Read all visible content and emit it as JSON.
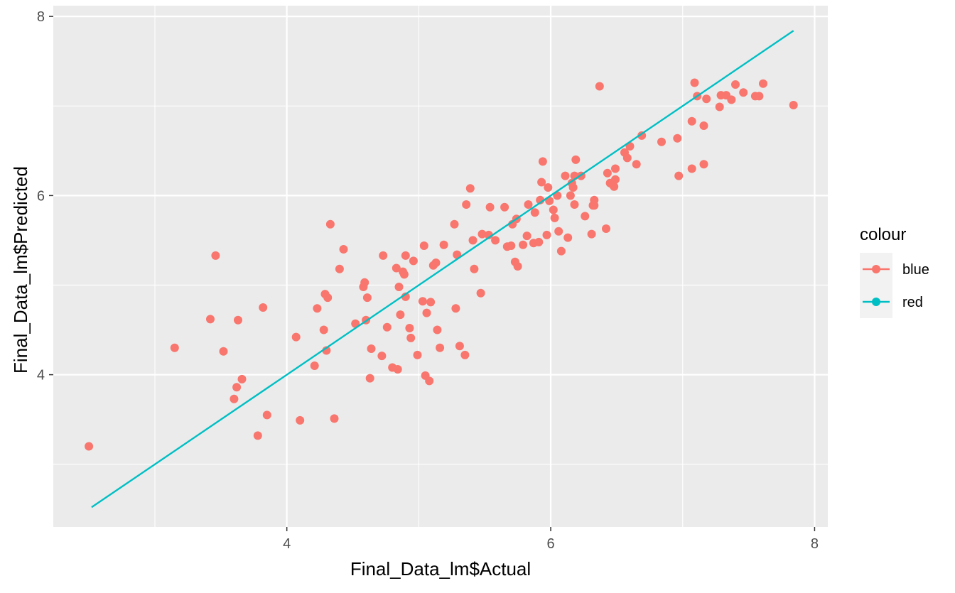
{
  "chart_data": {
    "type": "scatter",
    "xlabel": "Final_Data_lm$Actual",
    "ylabel": "Final_Data_lm$Predicted",
    "xlim": [
      2.23,
      8.1
    ],
    "ylim": [
      2.3,
      8.12
    ],
    "x_ticks": [
      4,
      6,
      8
    ],
    "x_tick_labels": [
      "4",
      "6",
      "8"
    ],
    "y_ticks": [
      4,
      6,
      8
    ],
    "y_tick_labels": [
      "4",
      "6",
      "8"
    ],
    "grid": true,
    "legend": {
      "title": "colour",
      "position": "right",
      "entries": [
        {
          "label": "blue",
          "color": "#F8766D"
        },
        {
          "label": "red",
          "color": "#00BFC4"
        }
      ]
    },
    "series": [
      {
        "name": "blue",
        "color": "#F8766D",
        "kind": "points",
        "points": [
          [
            2.5,
            3.2
          ],
          [
            3.15,
            4.3
          ],
          [
            3.42,
            4.62
          ],
          [
            3.46,
            5.33
          ],
          [
            3.52,
            4.26
          ],
          [
            3.6,
            3.73
          ],
          [
            3.62,
            3.86
          ],
          [
            3.63,
            4.61
          ],
          [
            3.66,
            3.95
          ],
          [
            3.78,
            3.32
          ],
          [
            3.82,
            4.75
          ],
          [
            3.85,
            3.55
          ],
          [
            4.07,
            4.42
          ],
          [
            4.1,
            3.49
          ],
          [
            4.21,
            4.1
          ],
          [
            4.23,
            4.74
          ],
          [
            4.28,
            4.5
          ],
          [
            4.29,
            4.9
          ],
          [
            4.3,
            4.27
          ],
          [
            4.31,
            4.86
          ],
          [
            4.33,
            5.68
          ],
          [
            4.36,
            3.51
          ],
          [
            4.4,
            5.18
          ],
          [
            4.43,
            5.4
          ],
          [
            4.52,
            4.57
          ],
          [
            4.58,
            4.98
          ],
          [
            4.59,
            5.03
          ],
          [
            4.6,
            4.61
          ],
          [
            4.61,
            4.86
          ],
          [
            4.63,
            3.96
          ],
          [
            4.64,
            4.29
          ],
          [
            4.72,
            4.21
          ],
          [
            4.73,
            5.33
          ],
          [
            4.76,
            4.53
          ],
          [
            4.8,
            4.08
          ],
          [
            4.83,
            5.19
          ],
          [
            4.84,
            4.06
          ],
          [
            4.85,
            4.98
          ],
          [
            4.86,
            4.67
          ],
          [
            4.88,
            5.15
          ],
          [
            4.89,
            5.12
          ],
          [
            4.9,
            5.33
          ],
          [
            4.9,
            4.87
          ],
          [
            4.93,
            4.52
          ],
          [
            4.94,
            4.41
          ],
          [
            4.96,
            5.27
          ],
          [
            4.99,
            4.22
          ],
          [
            5.03,
            4.82
          ],
          [
            5.04,
            5.44
          ],
          [
            5.05,
            3.99
          ],
          [
            5.06,
            4.69
          ],
          [
            5.08,
            3.93
          ],
          [
            5.09,
            4.81
          ],
          [
            5.11,
            5.22
          ],
          [
            5.13,
            5.25
          ],
          [
            5.14,
            4.5
          ],
          [
            5.16,
            4.3
          ],
          [
            5.19,
            5.45
          ],
          [
            5.27,
            5.68
          ],
          [
            5.28,
            4.74
          ],
          [
            5.29,
            5.34
          ],
          [
            5.31,
            4.32
          ],
          [
            5.35,
            4.22
          ],
          [
            5.36,
            5.9
          ],
          [
            5.39,
            6.08
          ],
          [
            5.41,
            5.5
          ],
          [
            5.42,
            5.18
          ],
          [
            5.47,
            4.91
          ],
          [
            5.48,
            5.57
          ],
          [
            5.53,
            5.56
          ],
          [
            5.54,
            5.87
          ],
          [
            5.58,
            5.5
          ],
          [
            5.65,
            5.87
          ],
          [
            5.67,
            5.43
          ],
          [
            5.7,
            5.44
          ],
          [
            5.71,
            5.68
          ],
          [
            5.73,
            5.26
          ],
          [
            5.74,
            5.74
          ],
          [
            5.75,
            5.21
          ],
          [
            5.79,
            5.45
          ],
          [
            5.82,
            5.55
          ],
          [
            5.83,
            5.9
          ],
          [
            5.87,
            5.47
          ],
          [
            5.88,
            5.81
          ],
          [
            5.91,
            5.48
          ],
          [
            5.92,
            5.95
          ],
          [
            5.93,
            6.15
          ],
          [
            5.94,
            6.38
          ],
          [
            5.97,
            5.56
          ],
          [
            5.98,
            6.09
          ],
          [
            5.99,
            5.94
          ],
          [
            6.02,
            5.84
          ],
          [
            6.03,
            5.75
          ],
          [
            6.05,
            6.0
          ],
          [
            6.06,
            5.6
          ],
          [
            6.08,
            5.38
          ],
          [
            6.11,
            6.22
          ],
          [
            6.13,
            5.53
          ],
          [
            6.15,
            6.0
          ],
          [
            6.16,
            6.14
          ],
          [
            6.17,
            6.09
          ],
          [
            6.18,
            6.22
          ],
          [
            6.18,
            5.9
          ],
          [
            6.19,
            6.4
          ],
          [
            6.23,
            6.22
          ],
          [
            6.26,
            5.77
          ],
          [
            6.31,
            5.57
          ],
          [
            6.32,
            5.89
          ],
          [
            6.33,
            5.89
          ],
          [
            6.33,
            5.95
          ],
          [
            6.37,
            7.22
          ],
          [
            6.42,
            5.63
          ],
          [
            6.43,
            6.25
          ],
          [
            6.45,
            6.14
          ],
          [
            6.47,
            6.12
          ],
          [
            6.48,
            6.1
          ],
          [
            6.49,
            6.3
          ],
          [
            6.49,
            6.18
          ],
          [
            6.56,
            6.48
          ],
          [
            6.58,
            6.42
          ],
          [
            6.6,
            6.55
          ],
          [
            6.65,
            6.35
          ],
          [
            6.69,
            6.67
          ],
          [
            6.84,
            6.6
          ],
          [
            6.96,
            6.64
          ],
          [
            6.97,
            6.22
          ],
          [
            7.07,
            6.83
          ],
          [
            7.07,
            6.3
          ],
          [
            7.09,
            7.26
          ],
          [
            7.11,
            7.11
          ],
          [
            7.16,
            6.78
          ],
          [
            7.16,
            6.35
          ],
          [
            7.18,
            7.08
          ],
          [
            7.28,
            6.99
          ],
          [
            7.29,
            7.12
          ],
          [
            7.33,
            7.12
          ],
          [
            7.37,
            7.07
          ],
          [
            7.4,
            7.24
          ],
          [
            7.46,
            7.15
          ],
          [
            7.55,
            7.11
          ],
          [
            7.58,
            7.11
          ],
          [
            7.61,
            7.25
          ],
          [
            7.84,
            7.01
          ]
        ]
      },
      {
        "name": "red",
        "color": "#00BFC4",
        "kind": "line",
        "points": [
          [
            2.52,
            2.52
          ],
          [
            7.84,
            7.84
          ]
        ]
      }
    ]
  }
}
